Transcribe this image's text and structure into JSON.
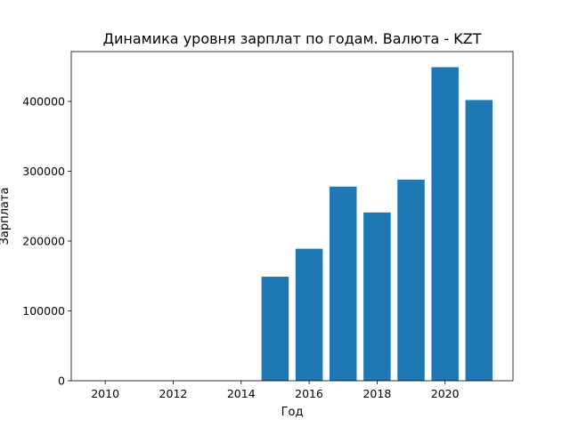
{
  "chart_data": {
    "type": "bar",
    "title": "Динамика уровня зарплат по годам. Валюта - KZT",
    "xlabel": "Год",
    "ylabel": "Зарплата",
    "x": [
      2015,
      2016,
      2017,
      2018,
      2019,
      2020,
      2021
    ],
    "values": [
      149000,
      189000,
      278000,
      241000,
      288000,
      449000,
      402000
    ],
    "xlim": [
      2009,
      2022
    ],
    "ylim": [
      0,
      400000
    ],
    "xticks": [
      2010,
      2012,
      2014,
      2016,
      2018,
      2020
    ],
    "yticks": [
      0,
      100000,
      200000,
      300000,
      400000
    ],
    "bar_color": "#1f77b4",
    "grid": false,
    "legend": false
  }
}
